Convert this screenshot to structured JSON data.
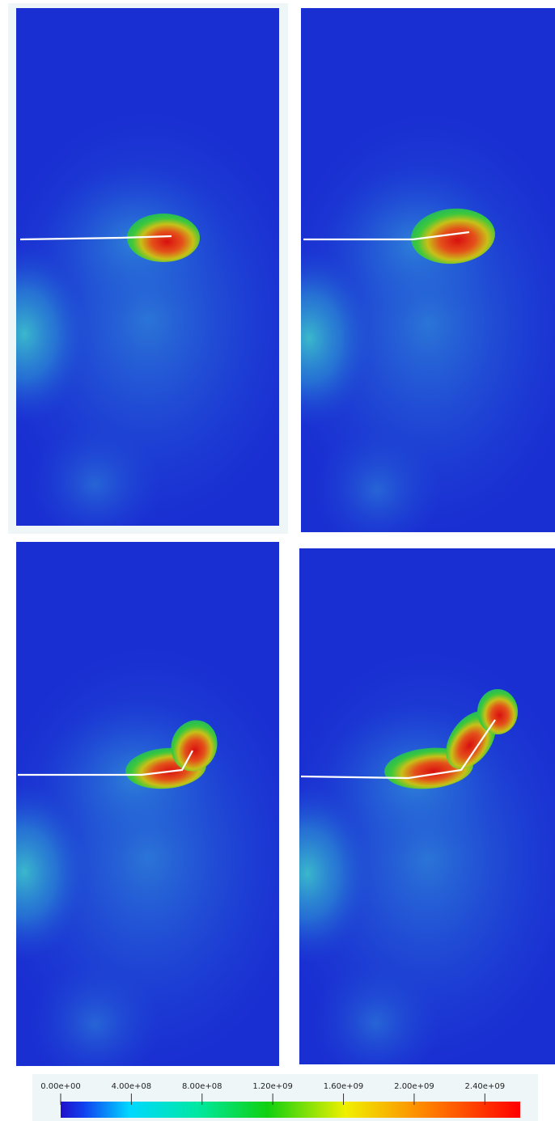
{
  "colorbar": {
    "range": [
      0,
      2600000000
    ],
    "ticks": [
      {
        "value": 0,
        "label": "0.00e+00"
      },
      {
        "value": 400000000,
        "label": "4.00e+08"
      },
      {
        "value": 800000000,
        "label": "8.00e+08"
      },
      {
        "value": 1200000000,
        "label": "1.20e+09"
      },
      {
        "value": 1600000000,
        "label": "1.60e+09"
      },
      {
        "value": 2000000000,
        "label": "2.00e+09"
      },
      {
        "value": 2400000000,
        "label": "2.40e+09"
      }
    ]
  }
}
